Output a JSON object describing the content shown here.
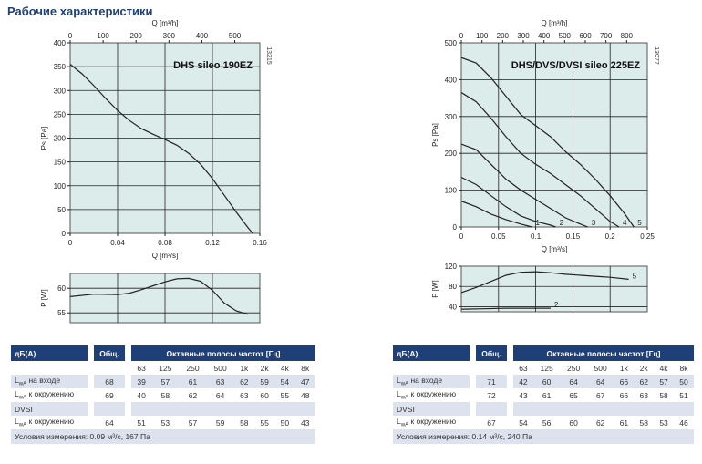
{
  "page_title": "Рабочие характеристики",
  "chart_data": [
    {
      "type": "line",
      "model": "DHS sileo 190EZ",
      "code": "13215",
      "xlabel": "Q [m³/s]",
      "x2label": "Q [m³/h]",
      "ylabel": "Ps [Pa]",
      "xlim": [
        0,
        0.16
      ],
      "ylim": [
        0,
        400
      ],
      "x2lim": [
        0,
        576
      ],
      "x_ticks": [
        "0",
        "0.04",
        "0.08",
        "0.12",
        "0.16"
      ],
      "y_ticks": [
        "0",
        "50",
        "100",
        "150",
        "200",
        "250",
        "300",
        "350",
        "400"
      ],
      "x2_ticks": [
        "0",
        "100",
        "200",
        "300",
        "400",
        "500"
      ],
      "series": [
        {
          "x": [
            0,
            0.01,
            0.02,
            0.03,
            0.04,
            0.05,
            0.06,
            0.07,
            0.08,
            0.09,
            0.1,
            0.11,
            0.12,
            0.13,
            0.14,
            0.15,
            0.154
          ],
          "y": [
            355,
            335,
            310,
            283,
            258,
            237,
            220,
            208,
            197,
            185,
            168,
            145,
            115,
            80,
            45,
            12,
            0
          ]
        }
      ]
    },
    {
      "type": "line",
      "xlabel": "",
      "ylabel": "P [W]",
      "xlim": [
        0,
        0.16
      ],
      "ylim": [
        53,
        63
      ],
      "y_ticks": [
        "55",
        "60"
      ],
      "series": [
        {
          "x": [
            0,
            0.02,
            0.04,
            0.05,
            0.06,
            0.07,
            0.08,
            0.09,
            0.1,
            0.11,
            0.12,
            0.13,
            0.14,
            0.15
          ],
          "y": [
            58.3,
            58.8,
            58.7,
            59.0,
            59.7,
            60.5,
            61.3,
            61.9,
            62.0,
            61.4,
            59.6,
            57.0,
            55.4,
            54.7
          ]
        }
      ]
    },
    {
      "type": "line",
      "model": "DHS/DVS/DVSI sileo 225EZ",
      "code": "13077",
      "xlabel": "Q [m³/s]",
      "x2label": "Q [m³/h]",
      "ylabel": "Ps [Pa]",
      "xlim": [
        0,
        0.25
      ],
      "ylim": [
        0,
        500
      ],
      "x2lim": [
        0,
        900
      ],
      "x_ticks": [
        "0",
        "0.05",
        "0.1",
        "0.15",
        "0.2",
        "0.25"
      ],
      "y_ticks": [
        "0",
        "100",
        "200",
        "300",
        "400",
        "500"
      ],
      "x2_ticks": [
        "0",
        "100",
        "200",
        "300",
        "400",
        "500",
        "600",
        "700",
        "800"
      ],
      "series": [
        {
          "name": "1",
          "x": [
            0,
            0.02,
            0.04,
            0.06,
            0.08,
            0.095
          ],
          "y": [
            70,
            55,
            35,
            20,
            8,
            0
          ]
        },
        {
          "name": "2",
          "x": [
            0,
            0.02,
            0.04,
            0.06,
            0.08,
            0.1,
            0.12,
            0.127
          ],
          "y": [
            135,
            115,
            85,
            55,
            30,
            15,
            5,
            0
          ]
        },
        {
          "name": "3",
          "x": [
            0,
            0.02,
            0.04,
            0.06,
            0.08,
            0.1,
            0.12,
            0.14,
            0.16,
            0.17
          ],
          "y": [
            225,
            210,
            170,
            130,
            100,
            75,
            50,
            25,
            8,
            0
          ]
        },
        {
          "name": "4",
          "x": [
            0,
            0.02,
            0.04,
            0.06,
            0.08,
            0.1,
            0.12,
            0.14,
            0.16,
            0.18,
            0.2,
            0.212
          ],
          "y": [
            365,
            340,
            295,
            245,
            200,
            170,
            145,
            115,
            85,
            50,
            15,
            0
          ]
        },
        {
          "name": "5",
          "x": [
            0,
            0.02,
            0.04,
            0.06,
            0.08,
            0.1,
            0.12,
            0.14,
            0.16,
            0.18,
            0.2,
            0.22,
            0.232
          ],
          "y": [
            460,
            445,
            405,
            355,
            305,
            275,
            245,
            205,
            170,
            130,
            85,
            35,
            0
          ]
        }
      ]
    },
    {
      "type": "line",
      "xlabel": "",
      "ylabel": "P [W]",
      "xlim": [
        0,
        0.25
      ],
      "ylim": [
        30,
        120
      ],
      "y_ticks": [
        "40",
        "80",
        "120"
      ],
      "series": [
        {
          "name": "2",
          "x": [
            0,
            0.03,
            0.06,
            0.09,
            0.12
          ],
          "y": [
            35,
            36,
            37,
            37,
            37
          ]
        },
        {
          "name": "5",
          "x": [
            0,
            0.02,
            0.04,
            0.06,
            0.08,
            0.1,
            0.12,
            0.14,
            0.16,
            0.18,
            0.2,
            0.225
          ],
          "y": [
            68,
            78,
            90,
            102,
            108,
            109,
            107,
            104,
            102,
            100,
            98,
            94
          ]
        }
      ]
    }
  ],
  "tables": [
    {
      "header": {
        "db": "дБ(A)",
        "total": "Общ.",
        "bands": "Октавные полосы частот [Гц]"
      },
      "freqs": [
        "63",
        "125",
        "250",
        "500",
        "1k",
        "2k",
        "4k",
        "8k"
      ],
      "rows": [
        {
          "label": "LwA на входе",
          "total": "68",
          "values": [
            "39",
            "57",
            "61",
            "63",
            "62",
            "59",
            "54",
            "47"
          ]
        },
        {
          "label": "LwA к окружению",
          "total": "69",
          "values": [
            "40",
            "58",
            "62",
            "64",
            "63",
            "60",
            "55",
            "48"
          ]
        },
        {
          "label": "DVSI",
          "total": "",
          "values": [
            "",
            "",
            "",
            "",
            "",
            "",
            "",
            ""
          ]
        },
        {
          "label": "LwA к окружению",
          "total": "64",
          "values": [
            "51",
            "53",
            "57",
            "59",
            "58",
            "55",
            "50",
            "43"
          ]
        }
      ],
      "footer": "Условия измерения: 0.09 м³/с, 167 Па"
    },
    {
      "header": {
        "db": "дБ(A)",
        "total": "Общ.",
        "bands": "Октавные полосы частот [Гц]"
      },
      "freqs": [
        "63",
        "125",
        "250",
        "500",
        "1k",
        "2k",
        "4k",
        "8k"
      ],
      "rows": [
        {
          "label": "LwA на входе",
          "total": "71",
          "values": [
            "42",
            "60",
            "64",
            "64",
            "66",
            "62",
            "57",
            "50"
          ]
        },
        {
          "label": "LwA к окружению",
          "total": "72",
          "values": [
            "43",
            "61",
            "65",
            "67",
            "66",
            "63",
            "58",
            "51"
          ]
        },
        {
          "label": "DVSI",
          "total": "",
          "values": [
            "",
            "",
            "",
            "",
            "",
            "",
            "",
            ""
          ]
        },
        {
          "label": "LwA к окружению",
          "total": "67",
          "values": [
            "54",
            "56",
            "60",
            "62",
            "61",
            "58",
            "53",
            "46"
          ]
        }
      ],
      "footer": "Условия измерения: 0.14 м³/с, 240 Па"
    }
  ]
}
